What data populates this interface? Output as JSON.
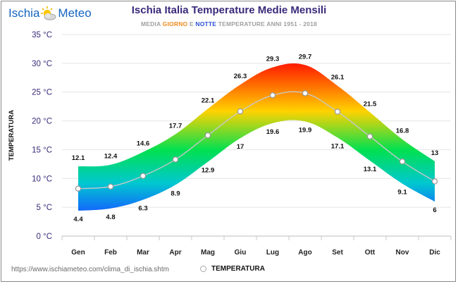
{
  "header": {
    "logo_left": "Ischia",
    "logo_right": "Meteo",
    "logo_icon": "sun-cloud-icon",
    "title": "Ischia Italia Temperature Medie Mensili",
    "subtitle_part1": "MEDIA ",
    "subtitle_giorno": "GIORNO",
    "subtitle_part2": " E ",
    "subtitle_notte": "NOTTE",
    "subtitle_part3": " TEMPERATURE ANNI 1951 - 2018"
  },
  "footer": {
    "url": "https://www.ischiameteo.com/clima_di_ischia.shtm",
    "legend_label": "TEMPERATURA"
  },
  "colors": {
    "hot": "#ff1a00",
    "warm": "#ffd200",
    "mild": "#00e050",
    "cool": "#00c8d0",
    "cold": "#1560ff",
    "axis_title": "#3a2a7a",
    "mean_line": "#c8c8c8"
  },
  "chart_data": {
    "type": "area",
    "categories": [
      "Gen",
      "Feb",
      "Mar",
      "Apr",
      "Mag",
      "Giu",
      "Lug",
      "Ago",
      "Set",
      "Ott",
      "Nov",
      "Dic"
    ],
    "series": [
      {
        "values": [
          12.1,
          12.4,
          14.6,
          17.7,
          22.1,
          26.3,
          29.3,
          29.7,
          26.1,
          21.5,
          16.8,
          13
        ]
      },
      {
        "values": [
          4.4,
          4.8,
          6.3,
          8.9,
          12.9,
          17,
          19.6,
          19.9,
          17.1,
          13.1,
          9.1,
          6
        ]
      },
      {
        "name": "TEMPERATURA",
        "values": [
          8.25,
          8.6,
          10.45,
          13.3,
          17.5,
          21.65,
          24.45,
          24.8,
          21.6,
          17.3,
          12.95,
          9.5
        ]
      }
    ],
    "ylabel": "TEMPERATURA",
    "ylim": [
      0,
      35
    ],
    "yticks": [
      0,
      5,
      10,
      15,
      20,
      25,
      30,
      35
    ],
    "ytick_labels": [
      "0 °C",
      "5 °C",
      "10 °C",
      "15 °C",
      "20 °C",
      "25 °C",
      "30 °C",
      "35 °C"
    ],
    "grid": true,
    "legend_position": "bottom"
  }
}
